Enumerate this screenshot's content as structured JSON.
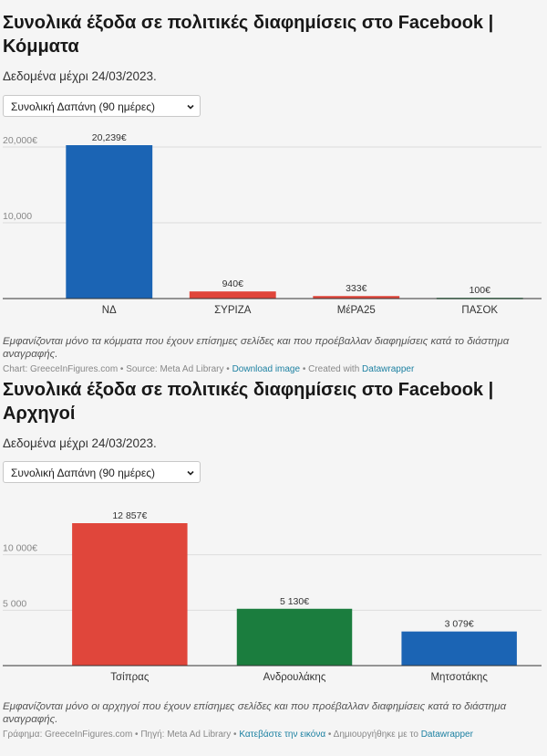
{
  "panels": [
    {
      "title": "Συνολικά έξοδα σε πολιτικές διαφημίσεις στο Facebook | Κόμματα",
      "subtitle": "Δεδομένα μέχρι 24/03/2023.",
      "select_value": "Συνολική Δαπάνη (90 ημέρες)",
      "notes": "Εμφανίζονται μόνο τα κόμματα που έχουν επίσημες σελίδες και που προέβαλλαν διαφημίσεις κατά το διάστημα αναγραφής.",
      "byline": {
        "prefix": "Chart: GreeceInFigures.com • Source: Meta Ad Library • ",
        "download": "Download image",
        "middle": " • Created with ",
        "tool": "Datawrapper"
      }
    },
    {
      "title": "Συνολικά έξοδα σε πολιτικές διαφημίσεις στο Facebook | Αρχηγοί",
      "subtitle": "Δεδομένα μέχρι 24/03/2023.",
      "select_value": "Συνολική Δαπάνη (90 ημέρες)",
      "notes": "Εμφανίζονται μόνο οι αρχηγοί που έχουν επίσημες σελίδες και που προέβαλλαν διαφημίσεις κατά το διάστημα αναγραφής.",
      "byline": {
        "prefix": "Γράφημα: GreeceInFigures.com • Πηγή: Meta Ad Library • ",
        "download": "Κατεβάστε την εικόνα",
        "middle": " • Δημιουργήθηκε με το ",
        "tool": "Datawrapper"
      }
    }
  ],
  "icons": {
    "select_chevron": "chevron-down-icon"
  },
  "colors": {
    "link": "#1d81a2"
  },
  "chart_data": [
    {
      "type": "bar",
      "categories": [
        "ΝΔ",
        "ΣΥΡΙΖΑ",
        "ΜέΡΑ25",
        "ΠΑΣΟΚ"
      ],
      "values": [
        20239,
        940,
        333,
        100
      ],
      "value_labels": [
        "20,239€",
        "940€",
        "333€",
        "100€"
      ],
      "colors": [
        "#1b64b4",
        "#e0463b",
        "#e0463b",
        "#1b7d3e"
      ],
      "yticks": [
        10000,
        20000
      ],
      "ytick_labels": [
        "10,000",
        "20,000€"
      ],
      "ylim": [
        0,
        20239
      ],
      "grid": true
    },
    {
      "type": "bar",
      "categories": [
        "Τσίπρας",
        "Ανδρουλάκης",
        "Μητσοτάκης"
      ],
      "values": [
        12857,
        5130,
        3079
      ],
      "value_labels": [
        "12 857€",
        "5 130€",
        "3 079€"
      ],
      "colors": [
        "#e0463b",
        "#1b7d3e",
        "#1b64b4"
      ],
      "yticks": [
        5000,
        10000
      ],
      "ytick_labels": [
        "5 000",
        "10 000€"
      ],
      "ylim": [
        0,
        12857
      ],
      "grid": true
    }
  ]
}
